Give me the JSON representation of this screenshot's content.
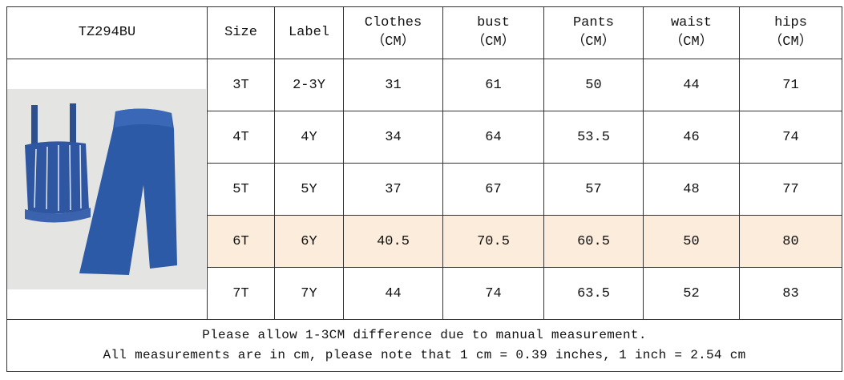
{
  "header": {
    "code": "TZ294BU"
  },
  "table": {
    "columns": [
      {
        "name": "Size"
      },
      {
        "name": "Label"
      },
      {
        "name": "Clothes",
        "unit": "（CM）"
      },
      {
        "name": "bust",
        "unit": "（CM）"
      },
      {
        "name": "Pants",
        "unit": "（CM）"
      },
      {
        "name": "waist",
        "unit": "（CM）"
      },
      {
        "name": "hips",
        "unit": "（CM）"
      }
    ],
    "rows": [
      [
        "3T",
        "2-3Y",
        31,
        61,
        50,
        44,
        71
      ],
      [
        "4T",
        "4Y",
        34,
        64,
        53.5,
        46,
        74
      ],
      [
        "5T",
        "5Y",
        37,
        67,
        57,
        48,
        77
      ],
      [
        "6T",
        "6Y",
        40.5,
        70.5,
        60.5,
        50,
        80
      ],
      [
        "7T",
        "7Y",
        44,
        74,
        63.5,
        52,
        83
      ]
    ],
    "highlight": {
      "row": 3,
      "color": "#fcecdc"
    }
  },
  "notes": [
    "Please allow 1-3CM difference due to manual measurement.",
    "All measurements are in cm, please note that 1 cm = 0.39 inches, 1 inch = 2.54 cm"
  ]
}
